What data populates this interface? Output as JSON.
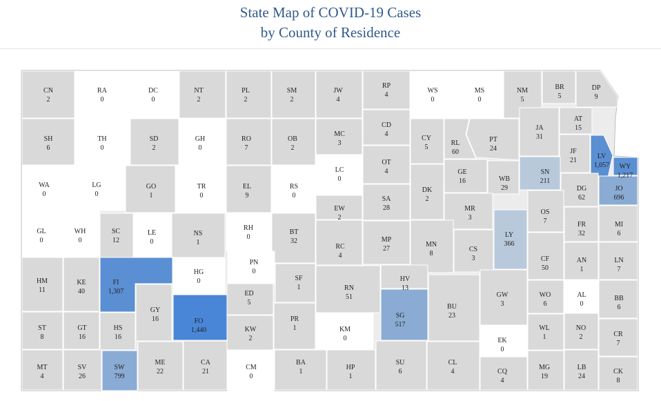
{
  "title_line1": "State Map of COVID-19 Cases",
  "title_line2": "by County of Residence",
  "colors": {
    "zero": "#ffffff",
    "low": "#d9d9d9",
    "mid": "#b9c9dc",
    "high": "#8aacd4",
    "top": "#5b8fd3",
    "max": "#4a86d8",
    "border": "#ffffff"
  },
  "counties": [
    {
      "abbr": "CN",
      "count": "2",
      "level": "low"
    },
    {
      "abbr": "RA",
      "count": "0",
      "level": "zero"
    },
    {
      "abbr": "DC",
      "count": "0",
      "level": "zero"
    },
    {
      "abbr": "NT",
      "count": "2",
      "level": "low"
    },
    {
      "abbr": "PL",
      "count": "2",
      "level": "low"
    },
    {
      "abbr": "SM",
      "count": "2",
      "level": "low"
    },
    {
      "abbr": "JW",
      "count": "4",
      "level": "low"
    },
    {
      "abbr": "RP",
      "count": "4",
      "level": "low"
    },
    {
      "abbr": "WS",
      "count": "0",
      "level": "zero"
    },
    {
      "abbr": "MS",
      "count": "0",
      "level": "zero"
    },
    {
      "abbr": "NM",
      "count": "5",
      "level": "low"
    },
    {
      "abbr": "BR",
      "count": "5",
      "level": "low"
    },
    {
      "abbr": "DP",
      "count": "9",
      "level": "low"
    },
    {
      "abbr": "SH",
      "count": "6",
      "level": "low"
    },
    {
      "abbr": "TH",
      "count": "0",
      "level": "zero"
    },
    {
      "abbr": "SD",
      "count": "2",
      "level": "low"
    },
    {
      "abbr": "GH",
      "count": "0",
      "level": "zero"
    },
    {
      "abbr": "RO",
      "count": "7",
      "level": "low"
    },
    {
      "abbr": "OB",
      "count": "2",
      "level": "low"
    },
    {
      "abbr": "MC",
      "count": "3",
      "level": "low"
    },
    {
      "abbr": "CD",
      "count": "4",
      "level": "low"
    },
    {
      "abbr": "CY",
      "count": "5",
      "level": "low"
    },
    {
      "abbr": "RL",
      "count": "60",
      "level": "low"
    },
    {
      "abbr": "PT",
      "count": "24",
      "level": "low"
    },
    {
      "abbr": "JA",
      "count": "31",
      "level": "low"
    },
    {
      "abbr": "AT",
      "count": "15",
      "level": "low"
    },
    {
      "abbr": "JF",
      "count": "21",
      "level": "low"
    },
    {
      "abbr": "LV",
      "count": "1,057",
      "level": "top"
    },
    {
      "abbr": "WY",
      "count": "1,217",
      "level": "top"
    },
    {
      "abbr": "WA",
      "count": "0",
      "level": "zero"
    },
    {
      "abbr": "LG",
      "count": "0",
      "level": "zero"
    },
    {
      "abbr": "GO",
      "count": "1",
      "level": "low"
    },
    {
      "abbr": "TR",
      "count": "0",
      "level": "zero"
    },
    {
      "abbr": "EL",
      "count": "9",
      "level": "low"
    },
    {
      "abbr": "RS",
      "count": "0",
      "level": "zero"
    },
    {
      "abbr": "LC",
      "count": "0",
      "level": "zero"
    },
    {
      "abbr": "OT",
      "count": "4",
      "level": "low"
    },
    {
      "abbr": "GE",
      "count": "16",
      "level": "low"
    },
    {
      "abbr": "WB",
      "count": "29",
      "level": "low"
    },
    {
      "abbr": "SN",
      "count": "211",
      "level": "mid"
    },
    {
      "abbr": "DG",
      "count": "62",
      "level": "low"
    },
    {
      "abbr": "JO",
      "count": "696",
      "level": "high"
    },
    {
      "abbr": "EW",
      "count": "2",
      "level": "low"
    },
    {
      "abbr": "SA",
      "count": "28",
      "level": "low"
    },
    {
      "abbr": "DK",
      "count": "2",
      "level": "low"
    },
    {
      "abbr": "MR",
      "count": "3",
      "level": "low"
    },
    {
      "abbr": "OS",
      "count": "7",
      "level": "low"
    },
    {
      "abbr": "FR",
      "count": "32",
      "level": "low"
    },
    {
      "abbr": "MI",
      "count": "6",
      "level": "low"
    },
    {
      "abbr": "GL",
      "count": "0",
      "level": "zero"
    },
    {
      "abbr": "WH",
      "count": "0",
      "level": "zero"
    },
    {
      "abbr": "SC",
      "count": "12",
      "level": "low"
    },
    {
      "abbr": "LE",
      "count": "0",
      "level": "zero"
    },
    {
      "abbr": "NS",
      "count": "1",
      "level": "low"
    },
    {
      "abbr": "RH",
      "count": "0",
      "level": "zero"
    },
    {
      "abbr": "BT",
      "count": "32",
      "level": "low"
    },
    {
      "abbr": "RC",
      "count": "4",
      "level": "low"
    },
    {
      "abbr": "MP",
      "count": "27",
      "level": "low"
    },
    {
      "abbr": "MN",
      "count": "8",
      "level": "low"
    },
    {
      "abbr": "CS",
      "count": "3",
      "level": "low"
    },
    {
      "abbr": "LY",
      "count": "366",
      "level": "mid"
    },
    {
      "abbr": "CF",
      "count": "50",
      "level": "low"
    },
    {
      "abbr": "AN",
      "count": "1",
      "level": "low"
    },
    {
      "abbr": "LN",
      "count": "7",
      "level": "low"
    },
    {
      "abbr": "HM",
      "count": "11",
      "level": "low"
    },
    {
      "abbr": "KE",
      "count": "40",
      "level": "low"
    },
    {
      "abbr": "FI",
      "count": "1,307",
      "level": "top"
    },
    {
      "abbr": "HG",
      "count": "0",
      "level": "zero"
    },
    {
      "abbr": "PN",
      "count": "0",
      "level": "zero"
    },
    {
      "abbr": "SF",
      "count": "1",
      "level": "low"
    },
    {
      "abbr": "RN",
      "count": "51",
      "level": "low"
    },
    {
      "abbr": "HV",
      "count": "13",
      "level": "low"
    },
    {
      "abbr": "GW",
      "count": "3",
      "level": "low"
    },
    {
      "abbr": "WO",
      "count": "6",
      "level": "low"
    },
    {
      "abbr": "AL",
      "count": "0",
      "level": "zero"
    },
    {
      "abbr": "BB",
      "count": "6",
      "level": "low"
    },
    {
      "abbr": "ED",
      "count": "5",
      "level": "low"
    },
    {
      "abbr": "GY",
      "count": "16",
      "level": "low"
    },
    {
      "abbr": "FO",
      "count": "1,440",
      "level": "max"
    },
    {
      "abbr": "BU",
      "count": "23",
      "level": "low"
    },
    {
      "abbr": "SG",
      "count": "517",
      "level": "high"
    },
    {
      "abbr": "ST",
      "count": "8",
      "level": "low"
    },
    {
      "abbr": "GT",
      "count": "16",
      "level": "low"
    },
    {
      "abbr": "HS",
      "count": "16",
      "level": "low"
    },
    {
      "abbr": "KW",
      "count": "2",
      "level": "low"
    },
    {
      "abbr": "PR",
      "count": "1",
      "level": "low"
    },
    {
      "abbr": "KM",
      "count": "0",
      "level": "zero"
    },
    {
      "abbr": "EK",
      "count": "0",
      "level": "zero"
    },
    {
      "abbr": "WL",
      "count": "1",
      "level": "low"
    },
    {
      "abbr": "NO",
      "count": "2",
      "level": "low"
    },
    {
      "abbr": "CR",
      "count": "7",
      "level": "low"
    },
    {
      "abbr": "MT",
      "count": "4",
      "level": "low"
    },
    {
      "abbr": "SV",
      "count": "26",
      "level": "low"
    },
    {
      "abbr": "SW",
      "count": "799",
      "level": "high"
    },
    {
      "abbr": "ME",
      "count": "22",
      "level": "low"
    },
    {
      "abbr": "CA",
      "count": "21",
      "level": "low"
    },
    {
      "abbr": "CM",
      "count": "0",
      "level": "zero"
    },
    {
      "abbr": "BA",
      "count": "1",
      "level": "low"
    },
    {
      "abbr": "HP",
      "count": "1",
      "level": "low"
    },
    {
      "abbr": "SU",
      "count": "6",
      "level": "low"
    },
    {
      "abbr": "CL",
      "count": "4",
      "level": "low"
    },
    {
      "abbr": "CQ",
      "count": "4",
      "level": "low"
    },
    {
      "abbr": "MG",
      "count": "19",
      "level": "low"
    },
    {
      "abbr": "LB",
      "count": "24",
      "level": "low"
    },
    {
      "abbr": "CK",
      "count": "8",
      "level": "low"
    }
  ]
}
